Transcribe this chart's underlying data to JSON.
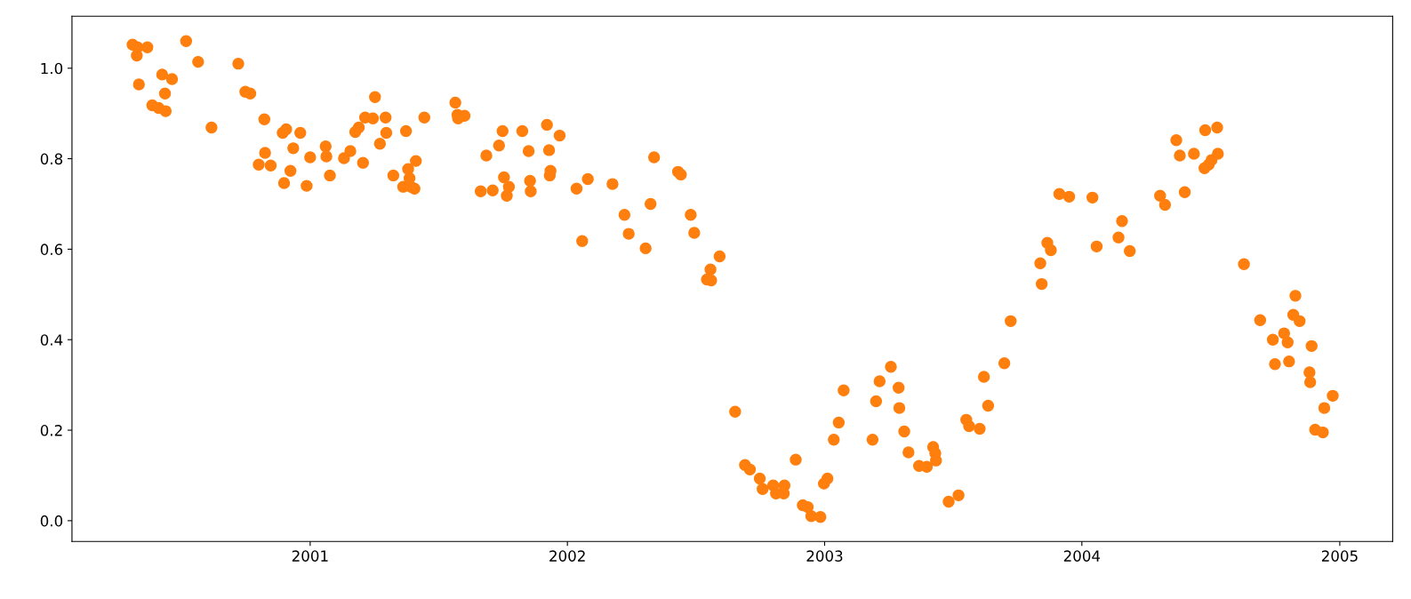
{
  "chart_data": {
    "type": "scatter",
    "marker": "circle",
    "grid": false,
    "xlim": [
      "2000-01-29",
      "2005-03-17"
    ],
    "ylim": [
      -0.046,
      1.115
    ],
    "xticks": [
      "2001",
      "2002",
      "2003",
      "2004",
      "2005"
    ],
    "yticks": [
      {
        "value": 0,
        "label": "0.0"
      },
      0.2,
      0.4,
      0.6,
      0.8,
      {
        "value": 1,
        "label": "1.0"
      }
    ],
    "series": [
      {
        "color": "#ff7f0e",
        "x": [
          "2000-04-24",
          "2000-05-01",
          "2000-04-30",
          "2000-05-03",
          "2000-05-15",
          "2000-05-22",
          "2000-05-31",
          "2000-06-05",
          "2000-06-09",
          "2000-06-10",
          "2000-06-19",
          "2000-07-09",
          "2000-07-26",
          "2000-08-14",
          "2000-09-21",
          "2000-10-01",
          "2000-10-08",
          "2000-10-20",
          "2000-10-28",
          "2000-10-29",
          "2000-11-06",
          "2000-11-23",
          "2000-11-25",
          "2000-11-28",
          "2000-12-04",
          "2000-12-08",
          "2000-12-18",
          "2000-12-27",
          "2001-01-01",
          "2001-01-23",
          "2001-01-24",
          "2001-01-29",
          "2001-02-18",
          "2001-02-27",
          "2001-03-06",
          "2001-03-11",
          "2001-03-17",
          "2001-03-20",
          "2001-03-31",
          "2001-04-03",
          "2001-04-10",
          "2001-04-18",
          "2001-04-19",
          "2001-04-29",
          "2001-05-13",
          "2001-05-17",
          "2001-05-20",
          "2001-05-22",
          "2001-05-24",
          "2001-05-29",
          "2001-05-31",
          "2001-06-12",
          "2001-07-26",
          "2001-07-29",
          "2001-07-30",
          "2001-08-08",
          "2001-08-31",
          "2001-09-08",
          "2001-09-17",
          "2001-09-26",
          "2001-10-01",
          "2001-10-03",
          "2001-10-07",
          "2001-10-10",
          "2001-10-29",
          "2001-11-07",
          "2001-11-09",
          "2001-11-10",
          "2001-12-03",
          "2001-12-06",
          "2001-12-08",
          "2001-12-07",
          "2001-12-21",
          "2002-01-14",
          "2002-01-22",
          "2002-01-30",
          "2002-03-06",
          "2002-03-23",
          "2002-03-29",
          "2002-04-22",
          "2002-04-29",
          "2002-05-04",
          "2002-06-07",
          "2002-06-11",
          "2002-06-25",
          "2002-06-30",
          "2002-07-18",
          "2002-07-23",
          "2002-07-24",
          "2002-08-05",
          "2002-08-27",
          "2002-09-10",
          "2002-09-17",
          "2002-10-01",
          "2002-10-05",
          "2002-10-20",
          "2002-10-24",
          "2002-11-05",
          "2002-11-04",
          "2002-11-21",
          "2002-12-01",
          "2002-12-08",
          "2002-12-13",
          "2002-12-26",
          "2002-12-31",
          "2003-01-05",
          "2003-01-14",
          "2003-01-21",
          "2003-01-28",
          "2003-03-10",
          "2003-03-15",
          "2003-03-20",
          "2003-04-05",
          "2003-04-16",
          "2003-04-17",
          "2003-04-24",
          "2003-04-30",
          "2003-05-15",
          "2003-05-26",
          "2003-06-04",
          "2003-06-07",
          "2003-06-08",
          "2003-06-26",
          "2003-07-10",
          "2003-07-21",
          "2003-07-25",
          "2003-08-09",
          "2003-08-15",
          "2003-08-21",
          "2003-09-13",
          "2003-09-22",
          "2003-11-03",
          "2003-11-05",
          "2003-11-13",
          "2003-11-18",
          "2003-11-30",
          "2003-12-14",
          "2004-01-16",
          "2004-01-22",
          "2004-02-22",
          "2004-02-27",
          "2004-03-09",
          "2004-04-21",
          "2004-04-28",
          "2004-05-14",
          "2004-05-19",
          "2004-05-26",
          "2004-06-08",
          "2004-06-23",
          "2004-06-24",
          "2004-06-29",
          "2004-07-03",
          "2004-07-11",
          "2004-07-12",
          "2004-08-18",
          "2004-09-10",
          "2004-09-28",
          "2004-10-01",
          "2004-10-14",
          "2004-10-19",
          "2004-10-21",
          "2004-10-27",
          "2004-10-30",
          "2004-11-05",
          "2004-11-19",
          "2004-11-20",
          "2004-11-22",
          "2004-11-27",
          "2004-12-08",
          "2004-12-10",
          "2004-12-22"
        ],
        "values": [
          1.052,
          1.046,
          1.028,
          0.964,
          1.046,
          0.918,
          0.912,
          0.986,
          0.944,
          0.905,
          0.976,
          1.06,
          1.014,
          0.869,
          1.01,
          0.948,
          0.944,
          0.787,
          0.887,
          0.813,
          0.785,
          0.857,
          0.746,
          0.865,
          0.773,
          0.823,
          0.857,
          0.74,
          0.803,
          0.827,
          0.805,
          0.763,
          0.801,
          0.817,
          0.859,
          0.869,
          0.791,
          0.891,
          0.889,
          0.936,
          0.833,
          0.891,
          0.857,
          0.763,
          0.738,
          0.861,
          0.777,
          0.757,
          0.738,
          0.734,
          0.795,
          0.891,
          0.924,
          0.897,
          0.889,
          0.895,
          0.728,
          0.807,
          0.73,
          0.829,
          0.861,
          0.759,
          0.718,
          0.738,
          0.861,
          0.817,
          0.751,
          0.728,
          0.875,
          0.819,
          0.773,
          0.763,
          0.851,
          0.734,
          0.618,
          0.755,
          0.744,
          0.676,
          0.634,
          0.602,
          0.7,
          0.803,
          0.771,
          0.765,
          0.676,
          0.636,
          0.533,
          0.555,
          0.531,
          0.584,
          0.241,
          0.123,
          0.113,
          0.093,
          0.07,
          0.078,
          0.06,
          0.078,
          0.06,
          0.135,
          0.034,
          0.03,
          0.01,
          0.008,
          0.082,
          0.093,
          0.179,
          0.217,
          0.288,
          0.179,
          0.264,
          0.308,
          0.34,
          0.294,
          0.249,
          0.197,
          0.151,
          0.121,
          0.119,
          0.163,
          0.149,
          0.133,
          0.042,
          0.056,
          0.223,
          0.209,
          0.203,
          0.318,
          0.254,
          0.348,
          0.441,
          0.569,
          0.523,
          0.614,
          0.598,
          0.722,
          0.716,
          0.714,
          0.606,
          0.626,
          0.662,
          0.596,
          0.718,
          0.698,
          0.841,
          0.807,
          0.726,
          0.811,
          0.779,
          0.863,
          0.787,
          0.797,
          0.869,
          0.811,
          0.567,
          0.443,
          0.4,
          0.346,
          0.414,
          0.394,
          0.352,
          0.455,
          0.497,
          0.441,
          0.328,
          0.306,
          0.386,
          0.201,
          0.195,
          0.249,
          0.276
        ]
      }
    ]
  }
}
